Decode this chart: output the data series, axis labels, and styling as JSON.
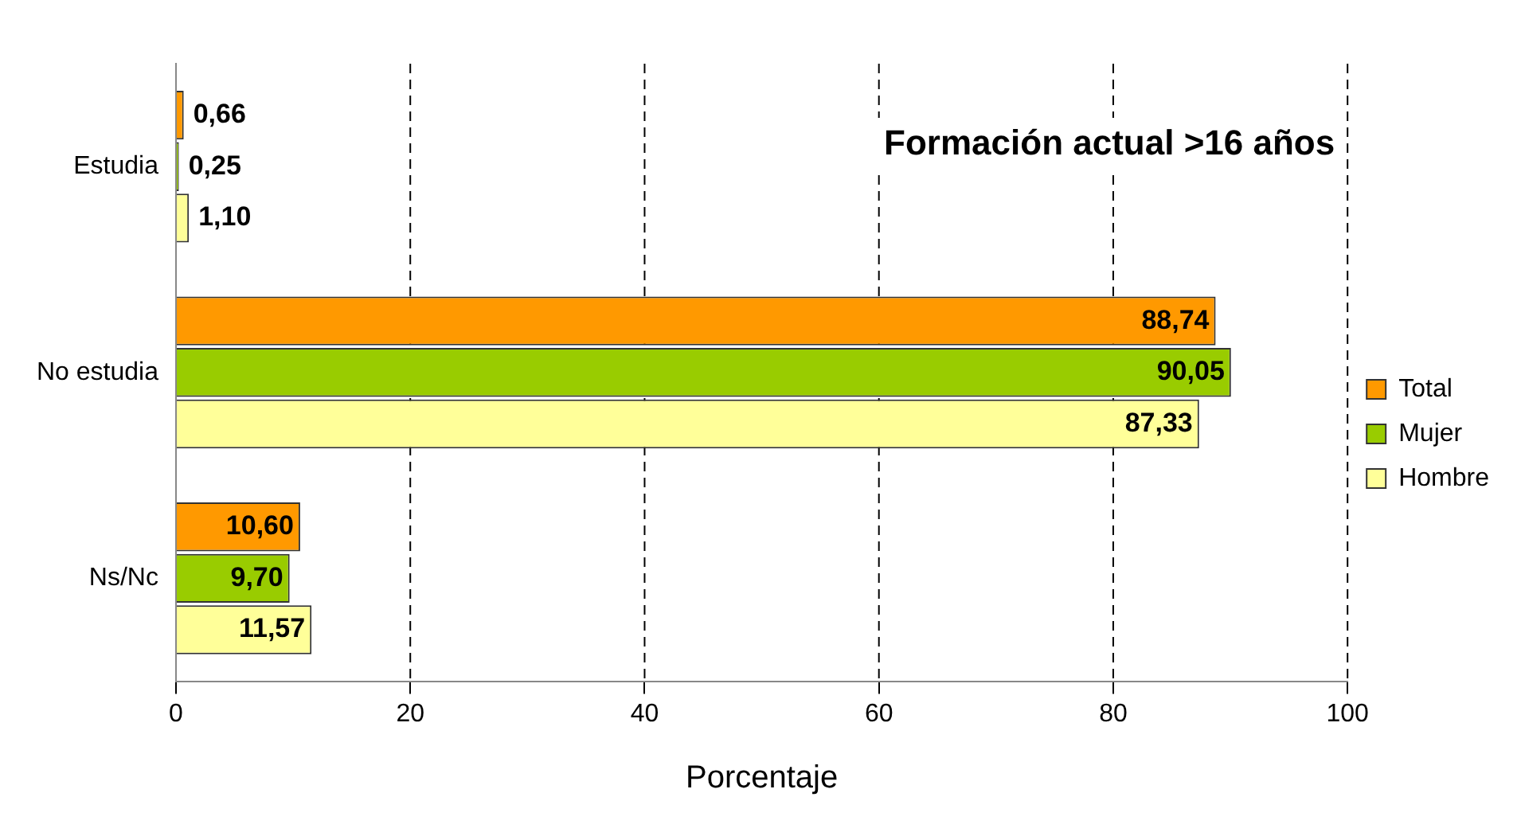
{
  "chart_data": {
    "type": "bar",
    "orientation": "horizontal",
    "title": "Formación actual >16 años",
    "xlabel": "Porcentaje",
    "categories": [
      "Estudia",
      "No estudia",
      "Ns/Nc"
    ],
    "series": [
      {
        "name": "Total",
        "color": "#ff9900",
        "values": [
          0.66,
          88.74,
          10.6
        ],
        "value_labels": [
          "0,66",
          "88,74",
          "10,60"
        ]
      },
      {
        "name": "Mujer",
        "color": "#99cc00",
        "values": [
          0.25,
          90.05,
          9.7
        ],
        "value_labels": [
          "0,25",
          "90,05",
          "9,70"
        ]
      },
      {
        "name": "Hombre",
        "color": "#ffff99",
        "values": [
          1.1,
          87.33,
          11.57
        ],
        "value_labels": [
          "1,10",
          "87,33",
          "11,57"
        ]
      }
    ],
    "xlim": [
      0,
      100
    ],
    "xticks": [
      0,
      20,
      40,
      60,
      80,
      100
    ],
    "grid": "x",
    "legend": "right"
  }
}
